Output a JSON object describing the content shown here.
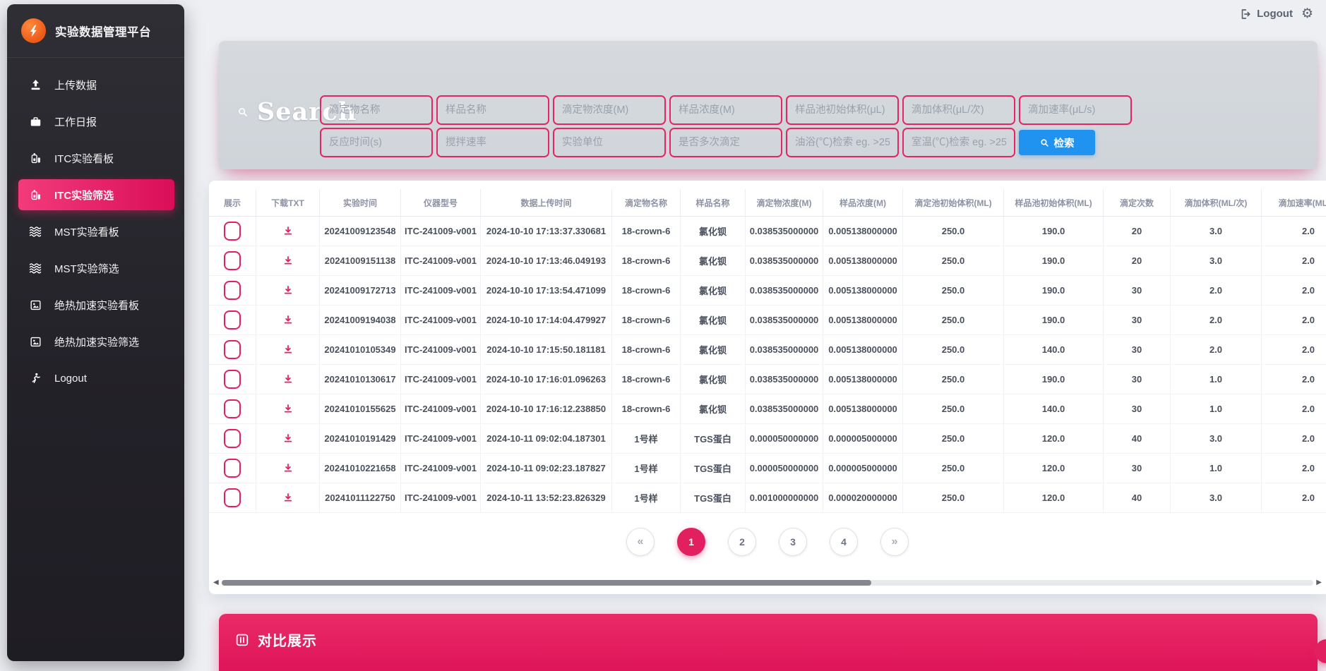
{
  "app": {
    "brand": "实验数据管理平台"
  },
  "topbar": {
    "logout_label": "Logout"
  },
  "sidebar": {
    "items": [
      {
        "icon": "upload-icon",
        "label": "上传数据",
        "active": false
      },
      {
        "icon": "briefcase-icon",
        "label": "工作日报",
        "active": false
      },
      {
        "icon": "flask-icon",
        "label": "ITC实验看板",
        "active": false
      },
      {
        "icon": "flask-icon",
        "label": "ITC实验筛选",
        "active": true
      },
      {
        "icon": "waves-icon",
        "label": "MST实验看板",
        "active": false
      },
      {
        "icon": "waves-icon",
        "label": "MST实验筛选",
        "active": false
      },
      {
        "icon": "image-icon",
        "label": "绝热加速实验看板",
        "active": false
      },
      {
        "icon": "image-icon",
        "label": "绝热加速实验筛选",
        "active": false
      },
      {
        "icon": "run-icon",
        "label": "Logout",
        "active": false
      }
    ]
  },
  "search": {
    "title": "Search",
    "row1_placeholders": [
      "滴定物名称",
      "样品名称",
      "滴定物浓度(M)",
      "样品浓度(M)",
      "样品池初始体积(μL)",
      "滴加体积(μL/次)",
      "滴加速率(μL/s)"
    ],
    "row2_placeholders": [
      "反应时间(s)",
      "搅拌速率",
      "实验单位",
      "是否多次滴定",
      "油浴(℃)检索 eg. >25",
      "室温(℃)检索 eg. >25"
    ],
    "button_label": "检索"
  },
  "table": {
    "headers": [
      "展示",
      "下载TXT",
      "实验时间",
      "仪器型号",
      "数据上传时间",
      "滴定物名称",
      "样品名称",
      "滴定物浓度(M)",
      "样品浓度(M)",
      "滴定池初始体积(ML)",
      "样品池初始体积(ML)",
      "滴定次数",
      "滴加体积(ML/次)",
      "滴加速率(ML/S)"
    ],
    "rows": [
      {
        "time": "20241009123548",
        "device": "ITC-241009-v001",
        "uploaded": "2024-10-10 17:13:37.330681",
        "titrant": "18-crown-6",
        "sample": "氯化钡",
        "titrant_conc": "0.038535000000",
        "sample_conc": "0.005138000000",
        "cell_vol": "250.0",
        "sample_vol": "190.0",
        "count": "20",
        "add_vol": "3.0",
        "rate": "2.0"
      },
      {
        "time": "20241009151138",
        "device": "ITC-241009-v001",
        "uploaded": "2024-10-10 17:13:46.049193",
        "titrant": "18-crown-6",
        "sample": "氯化钡",
        "titrant_conc": "0.038535000000",
        "sample_conc": "0.005138000000",
        "cell_vol": "250.0",
        "sample_vol": "190.0",
        "count": "20",
        "add_vol": "3.0",
        "rate": "2.0"
      },
      {
        "time": "20241009172713",
        "device": "ITC-241009-v001",
        "uploaded": "2024-10-10 17:13:54.471099",
        "titrant": "18-crown-6",
        "sample": "氯化钡",
        "titrant_conc": "0.038535000000",
        "sample_conc": "0.005138000000",
        "cell_vol": "250.0",
        "sample_vol": "190.0",
        "count": "30",
        "add_vol": "2.0",
        "rate": "2.0"
      },
      {
        "time": "20241009194038",
        "device": "ITC-241009-v001",
        "uploaded": "2024-10-10 17:14:04.479927",
        "titrant": "18-crown-6",
        "sample": "氯化钡",
        "titrant_conc": "0.038535000000",
        "sample_conc": "0.005138000000",
        "cell_vol": "250.0",
        "sample_vol": "190.0",
        "count": "30",
        "add_vol": "2.0",
        "rate": "2.0"
      },
      {
        "time": "20241010105349",
        "device": "ITC-241009-v001",
        "uploaded": "2024-10-10 17:15:50.181181",
        "titrant": "18-crown-6",
        "sample": "氯化钡",
        "titrant_conc": "0.038535000000",
        "sample_conc": "0.005138000000",
        "cell_vol": "250.0",
        "sample_vol": "140.0",
        "count": "30",
        "add_vol": "2.0",
        "rate": "2.0"
      },
      {
        "time": "20241010130617",
        "device": "ITC-241009-v001",
        "uploaded": "2024-10-10 17:16:01.096263",
        "titrant": "18-crown-6",
        "sample": "氯化钡",
        "titrant_conc": "0.038535000000",
        "sample_conc": "0.005138000000",
        "cell_vol": "250.0",
        "sample_vol": "190.0",
        "count": "30",
        "add_vol": "1.0",
        "rate": "2.0"
      },
      {
        "time": "20241010155625",
        "device": "ITC-241009-v001",
        "uploaded": "2024-10-10 17:16:12.238850",
        "titrant": "18-crown-6",
        "sample": "氯化钡",
        "titrant_conc": "0.038535000000",
        "sample_conc": "0.005138000000",
        "cell_vol": "250.0",
        "sample_vol": "140.0",
        "count": "30",
        "add_vol": "1.0",
        "rate": "2.0"
      },
      {
        "time": "20241010191429",
        "device": "ITC-241009-v001",
        "uploaded": "2024-10-11 09:02:04.187301",
        "titrant": "1号样",
        "sample": "TGS蛋白",
        "titrant_conc": "0.000050000000",
        "sample_conc": "0.000005000000",
        "cell_vol": "250.0",
        "sample_vol": "120.0",
        "count": "40",
        "add_vol": "3.0",
        "rate": "2.0"
      },
      {
        "time": "20241010221658",
        "device": "ITC-241009-v001",
        "uploaded": "2024-10-11 09:02:23.187827",
        "titrant": "1号样",
        "sample": "TGS蛋白",
        "titrant_conc": "0.000050000000",
        "sample_conc": "0.000005000000",
        "cell_vol": "250.0",
        "sample_vol": "120.0",
        "count": "30",
        "add_vol": "1.0",
        "rate": "2.0"
      },
      {
        "time": "20241011122750",
        "device": "ITC-241009-v001",
        "uploaded": "2024-10-11 13:52:23.826329",
        "titrant": "1号样",
        "sample": "TGS蛋白",
        "titrant_conc": "0.001000000000",
        "sample_conc": "0.000020000000",
        "cell_vol": "250.0",
        "sample_vol": "120.0",
        "count": "40",
        "add_vol": "3.0",
        "rate": "2.0"
      }
    ]
  },
  "pagination": {
    "prev_label": "«",
    "next_label": "»",
    "pages": [
      {
        "label": "1",
        "active": true
      },
      {
        "label": "2",
        "active": false
      },
      {
        "label": "3",
        "active": false
      },
      {
        "label": "4",
        "active": false
      }
    ]
  },
  "compare": {
    "title": "对比展示"
  },
  "colors": {
    "accent_pink": "#e3205f",
    "accent_blue": "#2093f0",
    "brand_orange": "#ec5a17",
    "sidebar_dark": "#26242b"
  }
}
